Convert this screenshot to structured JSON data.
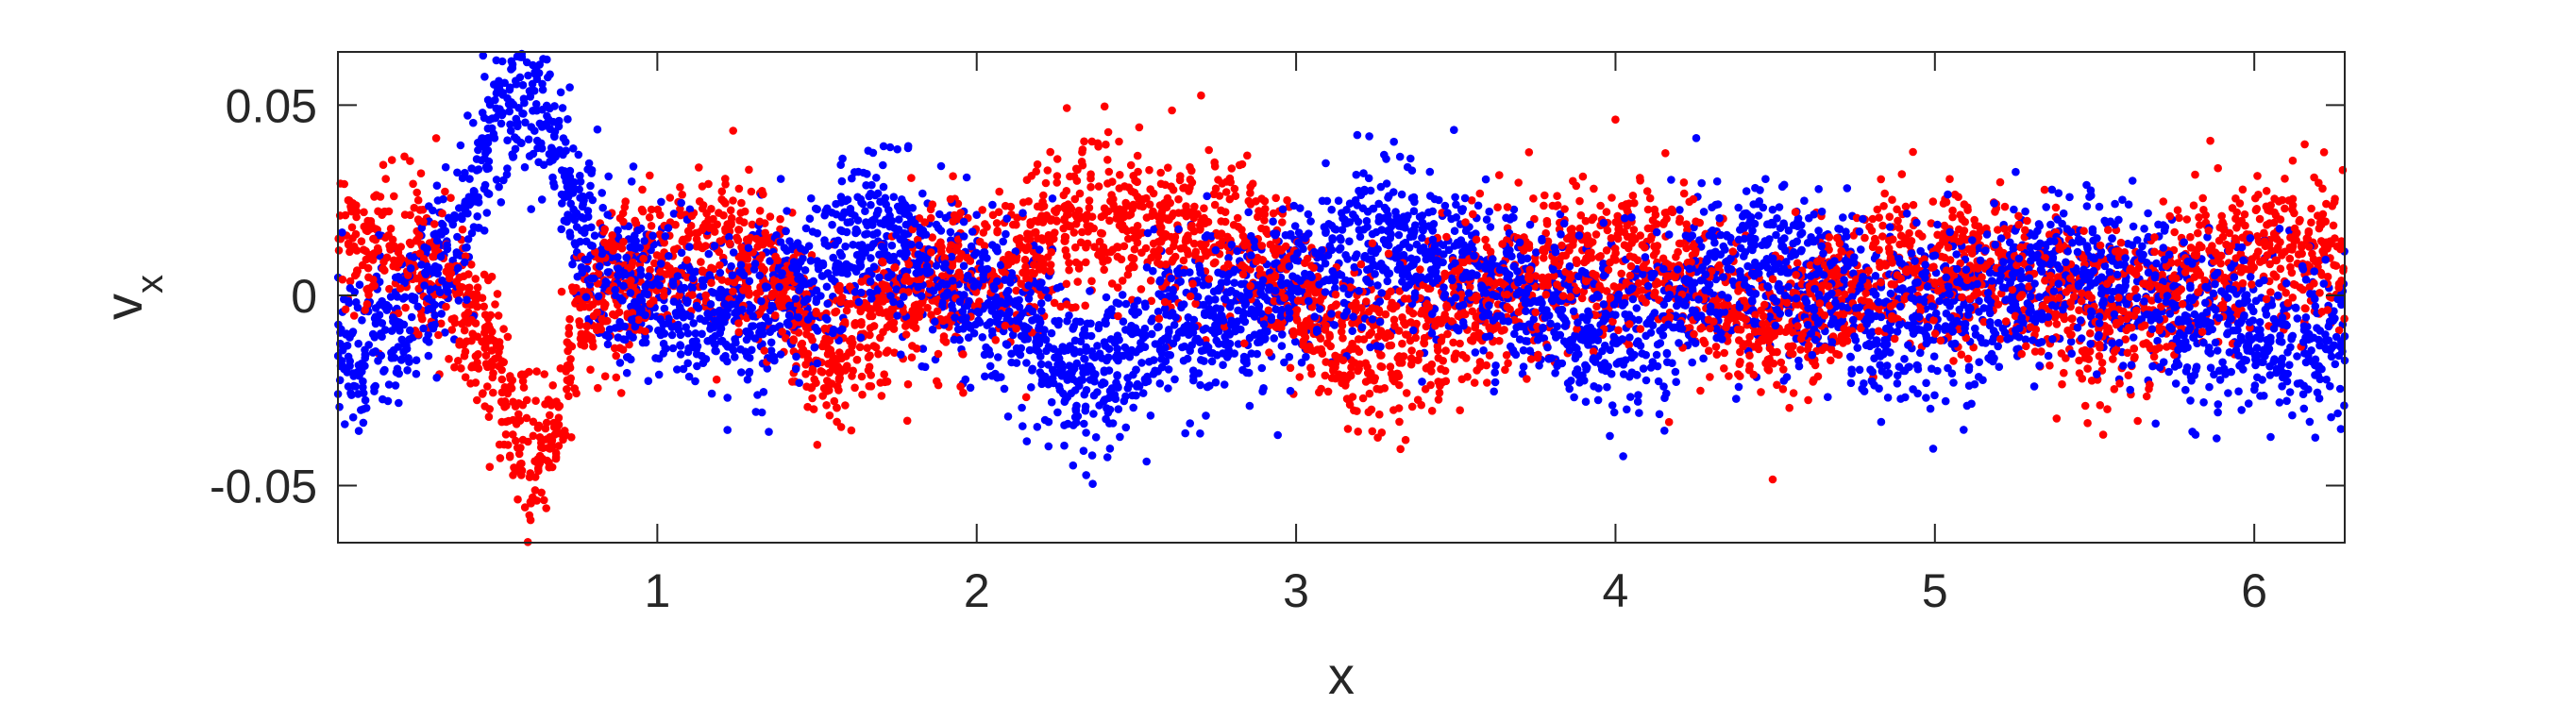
{
  "chart_data": {
    "type": "scatter",
    "title": "",
    "xlabel": "x",
    "ylabel": {
      "base": "v",
      "sub": "x"
    },
    "xlim": [
      0,
      6.2832
    ],
    "ylim": [
      -0.065,
      0.064
    ],
    "xticks": [
      1,
      2,
      3,
      4,
      5,
      6
    ],
    "xtick_labels": [
      "1",
      "2",
      "3",
      "4",
      "5",
      "6"
    ],
    "yticks": [
      -0.05,
      0,
      0.05
    ],
    "ytick_labels": [
      "-0.05",
      "0",
      "0.05"
    ],
    "grid": false,
    "legend": "none",
    "series": [
      {
        "color": "#ff0000",
        "points_per_x": 0.7,
        "spread": 0.01,
        "envelope_x": [
          0.0,
          0.1,
          0.2,
          0.3,
          0.4,
          0.5,
          0.55,
          0.6,
          0.65,
          0.7,
          0.75,
          0.8,
          0.9,
          1.0,
          1.1,
          1.2,
          1.3,
          1.4,
          1.5,
          1.6,
          1.7,
          1.8,
          1.9,
          2.0,
          2.1,
          2.2,
          2.3,
          2.4,
          2.5,
          2.6,
          2.7,
          2.8,
          2.9,
          3.0,
          3.1,
          3.2,
          3.3,
          3.4,
          3.5,
          3.6,
          3.7,
          3.8,
          3.9,
          4.0,
          4.1,
          4.2,
          4.3,
          4.4,
          4.5,
          4.6,
          4.7,
          4.8,
          4.9,
          5.0,
          5.1,
          5.2,
          5.3,
          5.4,
          5.5,
          5.6,
          5.7,
          5.8,
          5.9,
          6.0,
          6.1,
          6.2,
          6.28
        ],
        "envelope_y": [
          0.012,
          0.012,
          0.013,
          0.008,
          -0.005,
          -0.02,
          -0.035,
          -0.045,
          -0.04,
          -0.025,
          -0.012,
          0.0,
          0.005,
          0.008,
          0.013,
          0.012,
          0.01,
          0.0,
          -0.015,
          -0.013,
          -0.005,
          0.0,
          0.005,
          0.005,
          0.008,
          0.015,
          0.02,
          0.022,
          0.02,
          0.018,
          0.015,
          0.015,
          0.012,
          0.0,
          -0.01,
          -0.015,
          -0.015,
          -0.01,
          -0.005,
          0.0,
          0.005,
          0.008,
          0.008,
          0.01,
          0.01,
          0.008,
          0.0,
          -0.008,
          -0.008,
          -0.005,
          0.0,
          0.005,
          0.008,
          0.008,
          0.008,
          0.006,
          0.002,
          -0.003,
          -0.005,
          -0.003,
          0.0,
          0.005,
          0.01,
          0.012,
          0.012,
          0.012,
          0.012
        ]
      },
      {
        "color": "#0000ff",
        "points_per_x": 0.78,
        "spread": 0.0105,
        "envelope_x": [
          0.0,
          0.1,
          0.2,
          0.3,
          0.4,
          0.45,
          0.5,
          0.55,
          0.6,
          0.65,
          0.7,
          0.75,
          0.8,
          0.9,
          1.0,
          1.1,
          1.2,
          1.3,
          1.4,
          1.5,
          1.6,
          1.7,
          1.8,
          1.9,
          2.0,
          2.1,
          2.2,
          2.3,
          2.4,
          2.5,
          2.6,
          2.7,
          2.8,
          2.9,
          3.0,
          3.1,
          3.2,
          3.3,
          3.4,
          3.5,
          3.6,
          3.7,
          3.8,
          3.9,
          4.0,
          4.1,
          4.2,
          4.3,
          4.4,
          4.5,
          4.6,
          4.7,
          4.8,
          4.9,
          5.0,
          5.1,
          5.2,
          5.3,
          5.4,
          5.5,
          5.6,
          5.7,
          5.8,
          5.9,
          6.0,
          6.1,
          6.2,
          6.28
        ],
        "envelope_y": [
          -0.013,
          -0.012,
          -0.008,
          0.005,
          0.02,
          0.035,
          0.048,
          0.055,
          0.055,
          0.05,
          0.035,
          0.02,
          0.01,
          0.002,
          -0.002,
          -0.005,
          -0.005,
          -0.003,
          0.0,
          0.005,
          0.012,
          0.015,
          0.01,
          0.005,
          0.0,
          -0.005,
          -0.012,
          -0.018,
          -0.02,
          -0.015,
          -0.008,
          -0.005,
          -0.005,
          -0.003,
          0.005,
          0.01,
          0.012,
          0.015,
          0.012,
          0.008,
          0.005,
          0.0,
          -0.005,
          -0.008,
          -0.01,
          -0.008,
          -0.002,
          0.005,
          0.008,
          0.008,
          0.005,
          0.0,
          -0.005,
          -0.008,
          -0.008,
          -0.005,
          0.0,
          0.003,
          0.005,
          0.005,
          0.003,
          0.0,
          -0.005,
          -0.008,
          -0.01,
          -0.012,
          -0.012,
          -0.012
        ]
      }
    ]
  }
}
